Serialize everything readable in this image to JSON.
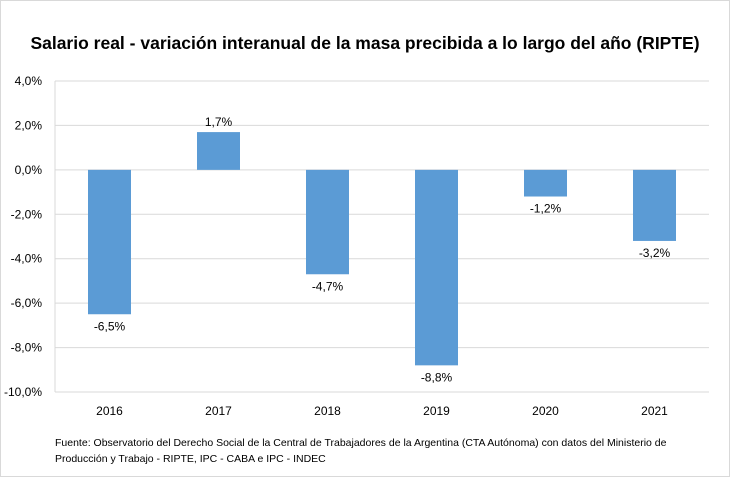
{
  "chart_data": {
    "type": "bar",
    "title": "Salario real - variación interanual de la masa precibida a lo largo del año (RIPTE)",
    "categories": [
      "2016",
      "2017",
      "2018",
      "2019",
      "2020",
      "2021"
    ],
    "values": [
      -6.5,
      1.7,
      -4.7,
      -8.8,
      -1.2,
      -3.2
    ],
    "data_labels": [
      "-6,5%",
      "1,7%",
      "-4,7%",
      "-8,8%",
      "-1,2%",
      "-3,2%"
    ],
    "ylim": [
      -10,
      4
    ],
    "yticks": [
      4,
      2,
      0,
      -2,
      -4,
      -6,
      -8,
      -10
    ],
    "ytick_labels": [
      "4,0%",
      "2,0%",
      "0,0%",
      "-2,0%",
      "-4,0%",
      "-6,0%",
      "-8,0%",
      "-10,0%"
    ],
    "grid": true,
    "xlabel": "",
    "ylabel": "",
    "bar_color": "#5b9bd5"
  },
  "footnote": "Fuente: Observatorio del Derecho Social de la Central de Trabajadores de la Argentina (CTA Autónoma) con datos del Ministerio de Producción y Trabajo - RIPTE, IPC - CABA e IPC - INDEC"
}
